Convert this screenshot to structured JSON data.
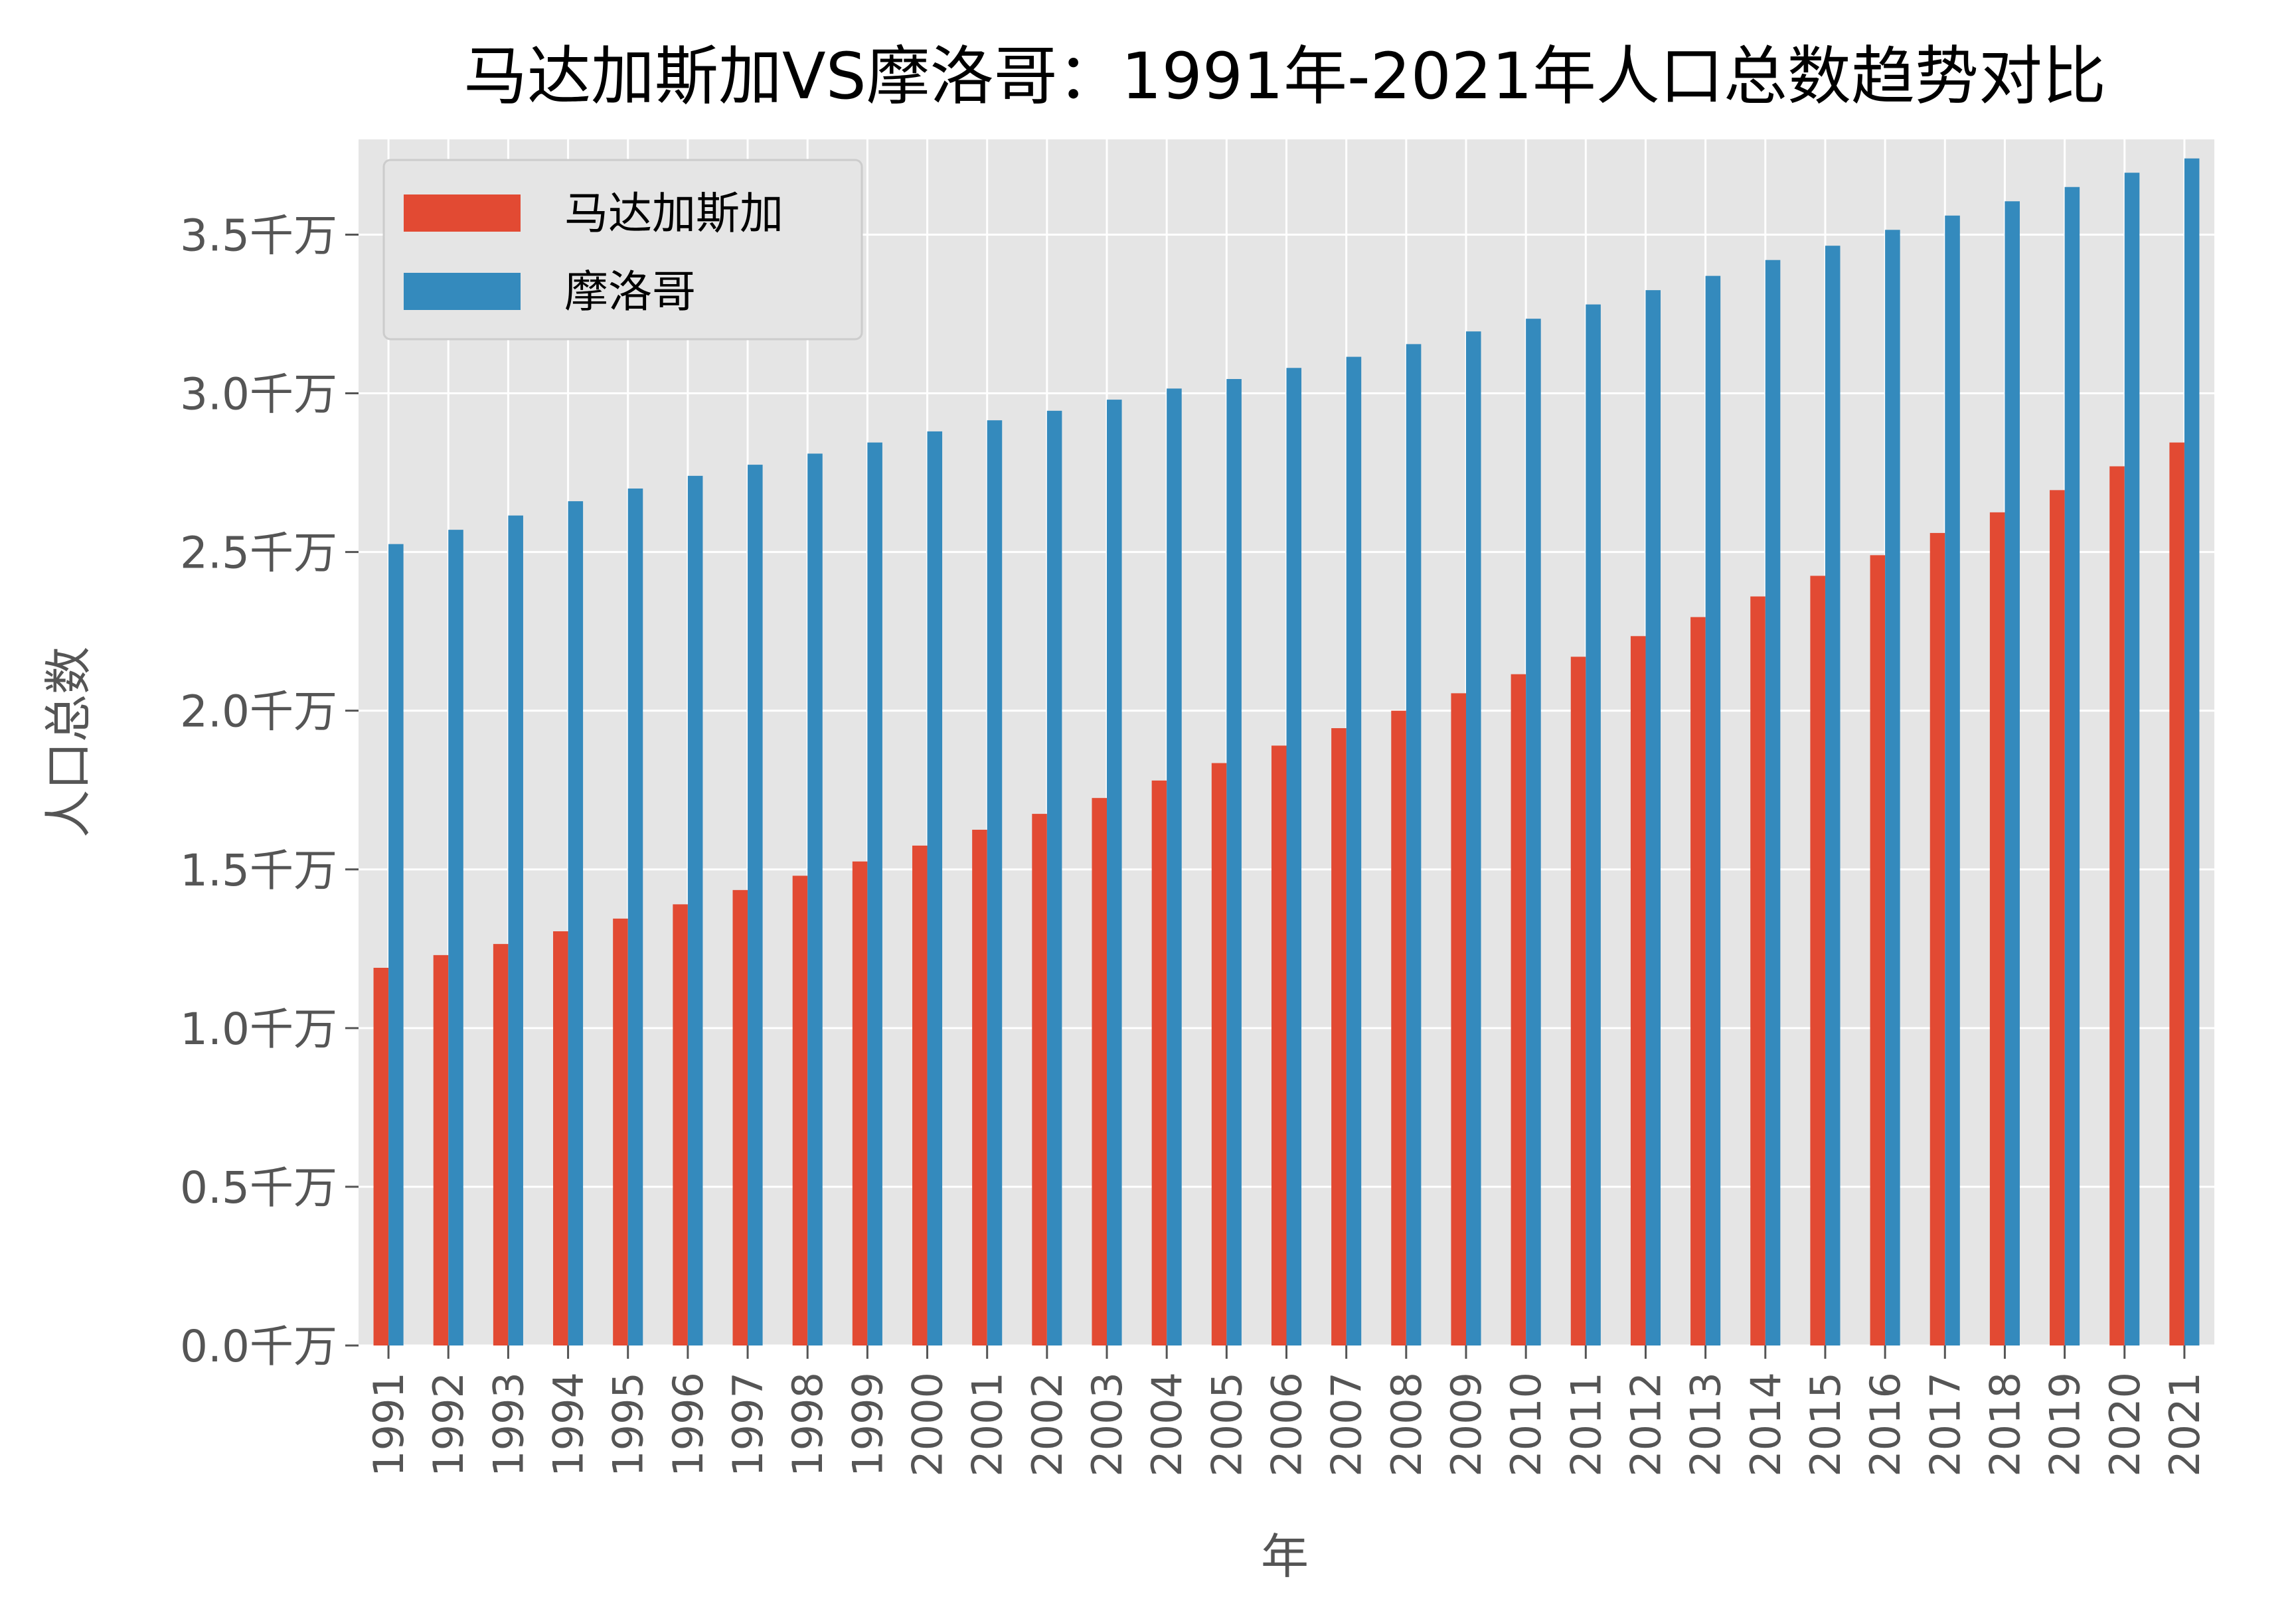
{
  "chart_data": {
    "type": "bar",
    "title": "马达加斯加VS摩洛哥：1991年-2021年人口总数趋势对比",
    "xlabel": "年",
    "ylabel": "人口总数",
    "categories": [
      "1991",
      "1992",
      "1993",
      "1994",
      "1995",
      "1996",
      "1997",
      "1998",
      "1999",
      "2000",
      "2001",
      "2002",
      "2003",
      "2004",
      "2005",
      "2006",
      "2007",
      "2008",
      "2009",
      "2010",
      "2011",
      "2012",
      "2013",
      "2014",
      "2015",
      "2016",
      "2017",
      "2018",
      "2019",
      "2020",
      "2021"
    ],
    "series": [
      {
        "name": "马达加斯加",
        "color": "#E24A33",
        "values": [
          1.19,
          1.23,
          1.265,
          1.305,
          1.345,
          1.39,
          1.435,
          1.48,
          1.525,
          1.575,
          1.625,
          1.675,
          1.725,
          1.78,
          1.835,
          1.89,
          1.945,
          2.0,
          2.055,
          2.115,
          2.17,
          2.235,
          2.295,
          2.36,
          2.425,
          2.49,
          2.56,
          2.625,
          2.695,
          2.77,
          2.845
        ]
      },
      {
        "name": "摩洛哥",
        "color": "#348ABD",
        "values": [
          2.525,
          2.57,
          2.615,
          2.66,
          2.7,
          2.74,
          2.775,
          2.81,
          2.845,
          2.88,
          2.915,
          2.945,
          2.98,
          3.015,
          3.045,
          3.08,
          3.115,
          3.155,
          3.195,
          3.235,
          3.28,
          3.325,
          3.37,
          3.42,
          3.465,
          3.515,
          3.56,
          3.605,
          3.65,
          3.695,
          3.74
        ]
      }
    ],
    "ylim": [
      0,
      3.8
    ],
    "yticks": [
      0,
      0.5,
      1.0,
      1.5,
      2.0,
      2.5,
      3.0,
      3.5
    ],
    "ytick_labels": [
      "0.0千万",
      "0.5千万",
      "1.0千万",
      "1.5千万",
      "2.0千万",
      "2.5千万",
      "3.0千万",
      "3.5千万"
    ],
    "grid": true,
    "legend_position": "top-left",
    "background": "#E5E5E5"
  }
}
